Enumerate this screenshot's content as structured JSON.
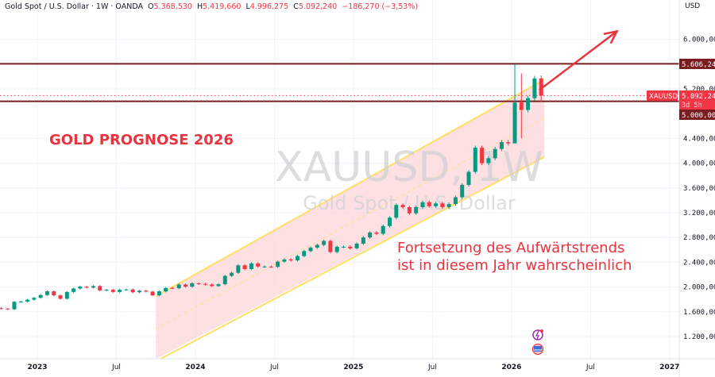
{
  "legend": {
    "symbol": "Gold Spot / U.S. Dollar · 1W · OANDA",
    "open_label": "O",
    "open": "5.368,530",
    "high_label": "H",
    "high": "5.419,660",
    "low_label": "L",
    "low": "4.996,275",
    "close_label": "C",
    "close": "5.092,240",
    "change": "−186,270 (−3,53%)"
  },
  "currency": "USD",
  "watermark": {
    "symbol": "XAUUSD, 1W",
    "name": "Gold Spot / U.S. Dollar"
  },
  "annotations": {
    "title": "GOLD PROGNOSE 2026",
    "note_line1": "Fortsetzung des Aufwärtstrends",
    "note_line2": "ist in diesem Jahr wahrscheinlich"
  },
  "price_badges": {
    "resistance": "5.606,248",
    "support": "5.000,000",
    "symbol": "XAUUSD",
    "last": "5.092,240",
    "countdown": "3d 5h"
  },
  "colors": {
    "up": "#089981",
    "down": "#f23645",
    "level": "#7a1c20",
    "channel_line": "#ffe066",
    "channel_fill": "#fcd5d8",
    "annotation": "#e8343f"
  },
  "chart_data": {
    "type": "candlestick",
    "title": "",
    "y_scale": "linear",
    "ylim": [
      900,
      6300
    ],
    "y_ticks": [
      1200,
      1600,
      2000,
      2400,
      2800,
      3200,
      3600,
      4000,
      4400,
      5200,
      6000
    ],
    "y_tick_labels": [
      "1.200,000",
      "1.600,000",
      "2.000,000",
      "2.400,000",
      "2.800,000",
      "3.200,000",
      "3.600,000",
      "4.000,000",
      "4.400,000",
      "5.200,000",
      "6.000,000"
    ],
    "x_ticks": [
      "2023",
      "Jul",
      "2024",
      "Jul",
      "2025",
      "Jul",
      "2026",
      "Jul",
      "2027"
    ],
    "x_tick_dates": [
      "2023-01",
      "2023-07",
      "2024-01",
      "2024-07",
      "2025-01",
      "2025-07",
      "2026-01",
      "2026-07",
      "2027-01"
    ],
    "series_start": "2022-10",
    "points_per_month": 2,
    "closes": [
      1650,
      1640,
      1760,
      1765,
      1795,
      1825,
      1870,
      1930,
      1865,
      1810,
      1920,
      1975,
      2005,
      1990,
      2015,
      1945,
      1955,
      1920,
      1955,
      1960,
      1915,
      1940,
      1925,
      1865,
      1930,
      1985,
      1980,
      2040,
      2005,
      2060,
      2050,
      2040,
      2015,
      2045,
      2180,
      2230,
      2350,
      2290,
      2380,
      2330,
      2330,
      2325,
      2410,
      2445,
      2430,
      2500,
      2580,
      2635,
      2680,
      2745,
      2565,
      2650,
      2650,
      2625,
      2700,
      2800,
      2880,
      2860,
      2985,
      3120,
      3325,
      3290,
      3190,
      3290,
      3370,
      3305,
      3350,
      3290,
      3340,
      3450,
      3650,
      3860,
      4250,
      4000,
      4080,
      4230,
      4340,
      4320,
      4980,
      4860,
      5050,
      5368
    ],
    "special_wicks": [
      {
        "index": 78,
        "high": 5600,
        "low": 4700
      },
      {
        "index": 79,
        "high": 5450,
        "low": 4400
      }
    ],
    "last_candle": {
      "date": "2026-03",
      "open": 5368.53,
      "high": 5419.66,
      "low": 4996.275,
      "close": 5092.24
    },
    "levels": [
      5606.248,
      5000,
      5092.24
    ],
    "channel": {
      "start": "2023-10",
      "end": "2026-03",
      "upper": [
        1850,
        5350
      ],
      "lower": [
        800,
        4100
      ]
    },
    "arrow": {
      "from": [
        "2026-03",
        5180
      ],
      "to": [
        "2026-09",
        6130
      ]
    }
  }
}
